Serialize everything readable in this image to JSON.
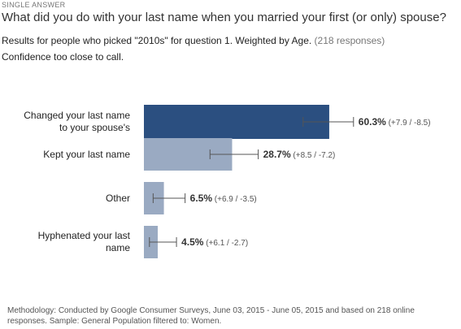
{
  "header": {
    "question_type": "SINGLE ANSWER",
    "question": "What did you do with your last name when you married your first (or only) spouse?",
    "results_text": "Results for people who picked \"2010s\" for question 1. Weighted by Age.",
    "responses": "(218 responses)",
    "confidence": "Confidence too close to call."
  },
  "colors": {
    "top_bar": "#2b4f80",
    "other_bar": "#9aaac2",
    "error_bar": "#555555"
  },
  "chart_data": {
    "type": "bar",
    "orientation": "horizontal",
    "categories": [
      [
        "Changed your last name",
        "to your spouse's"
      ],
      [
        "Kept your last name"
      ],
      [
        "Other"
      ],
      [
        "Hyphenated your last",
        "name"
      ]
    ],
    "values": [
      60.3,
      28.7,
      6.5,
      4.5
    ],
    "value_labels": [
      "60.3%",
      "28.7%",
      "6.5%",
      "4.5%"
    ],
    "error_plus": [
      7.9,
      8.5,
      6.9,
      6.1
    ],
    "error_minus": [
      8.5,
      7.2,
      3.5,
      2.7
    ],
    "error_labels": [
      "(+7.9 / -8.5)",
      "(+8.5 / -7.2)",
      "(+6.9 / -3.5)",
      "(+6.1 / -2.7)"
    ],
    "xlim": [
      0,
      100
    ]
  },
  "footer": {
    "methodology": "Methodology: Conducted by Google Consumer Surveys, June 03, 2015 - June 05, 2015 and based on 218 online responses. Sample: General Population filtered to: Women."
  }
}
